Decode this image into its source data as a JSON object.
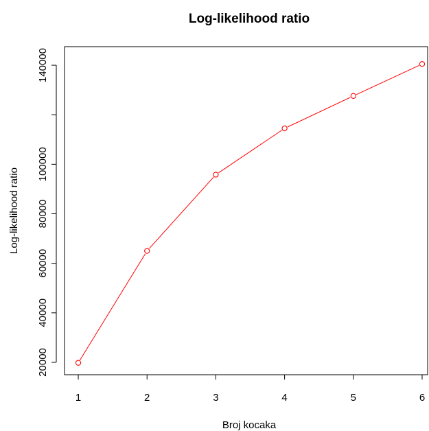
{
  "chart_data": {
    "type": "line",
    "title": "Log-likelihood ratio",
    "xlabel": "Broj kocaka",
    "ylabel": "Log-likelihood ratio",
    "x": [
      1,
      2,
      3,
      4,
      5,
      6
    ],
    "series": [
      {
        "values": [
          19800,
          65000,
          95800,
          114500,
          127600,
          140500
        ],
        "color": "#ff0000",
        "marker": "open-circle"
      }
    ],
    "x_ticks": [
      1,
      2,
      3,
      4,
      5,
      6
    ],
    "x_tick_labels": [
      "1",
      "2",
      "3",
      "4",
      "5",
      "6"
    ],
    "y_ticks": [
      20000,
      40000,
      60000,
      80000,
      100000,
      120000,
      140000
    ],
    "y_tick_labels": [
      "20000",
      "40000",
      "60000",
      "80000",
      "100000",
      "",
      "140000"
    ],
    "xlim": [
      0.8,
      6.08
    ],
    "ylim": [
      15000,
      147500
    ],
    "grid": false,
    "legend": "none"
  }
}
